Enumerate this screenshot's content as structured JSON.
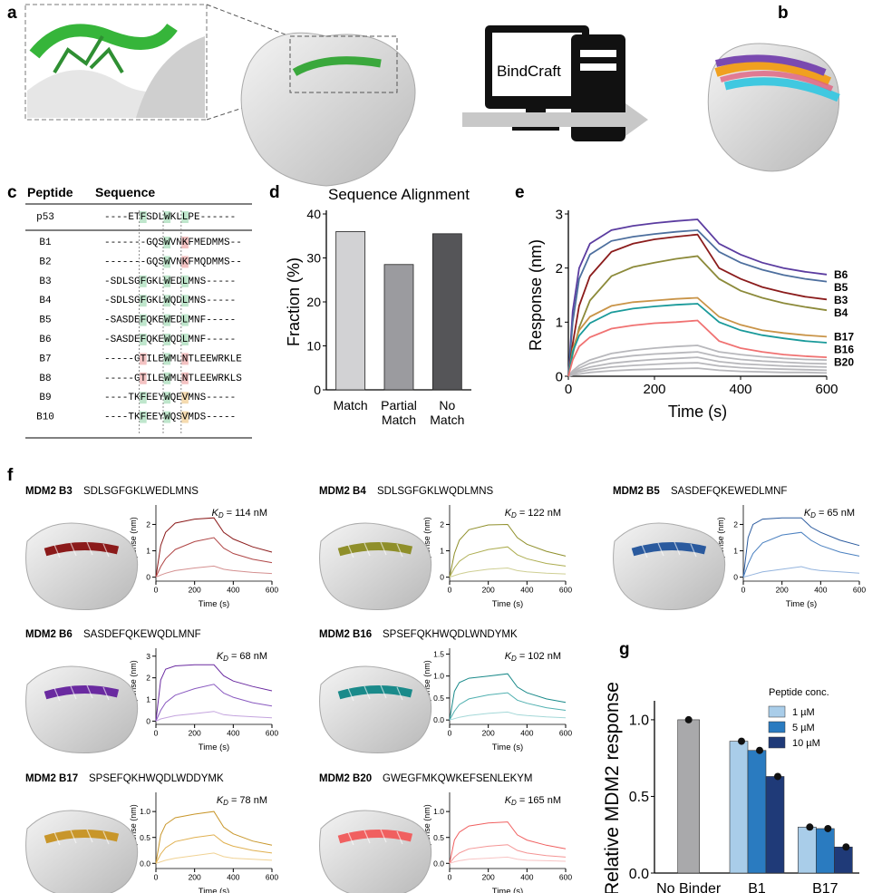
{
  "panel_labels": [
    "a",
    "b",
    "c",
    "d",
    "e",
    "f",
    "g"
  ],
  "software": "BindCraft",
  "alignment": {
    "headers": [
      "Peptide",
      "Sequence"
    ],
    "rows": [
      [
        "p53",
        "----ETFSDLWKLLPE------"
      ],
      [
        "B1",
        "-------GQSWVNKFMEDMMS--"
      ],
      [
        "B2",
        "-------GQSWVNKFMQDMMS--"
      ],
      [
        "B3",
        "-SDLSGFGKLWEDLMNS-----"
      ],
      [
        "B4",
        "-SDLSGFGKLWQDLMNS-----"
      ],
      [
        "B5",
        "-SASDEFQKEWEDLMNF-----"
      ],
      [
        "B6",
        "-SASDEFQKEWQDLMNF-----"
      ],
      [
        "B7",
        "-----GTILEWMLNTLEEWRKLE"
      ],
      [
        "B8",
        "-----GTILEWMLNTLEEWRKLS"
      ],
      [
        "B9",
        "----TKFEEYWQEVMNS-----"
      ],
      [
        "B10",
        "----TKFEEYWQSVMDS-----"
      ]
    ]
  },
  "chart_data": [
    {
      "type": "bar",
      "title": "Sequence Alignment",
      "categories": [
        "Match",
        "Partial\nMatch",
        "No\nMatch"
      ],
      "values": [
        36,
        28.5,
        35.5
      ],
      "colors": [
        "#d2d2d4",
        "#9b9b9f",
        "#555558"
      ],
      "ylabel": "Fraction (%)",
      "ylim": [
        0,
        40
      ],
      "yticks": [
        0,
        10,
        20,
        30,
        40
      ]
    },
    {
      "type": "line",
      "xlabel": "Time (s)",
      "ylabel": "Response (nm)",
      "x": [
        0,
        10,
        25,
        50,
        100,
        150,
        200,
        250,
        300,
        350,
        400,
        450,
        500,
        550,
        600
      ],
      "xlim": [
        0,
        600
      ],
      "xticks": [
        0,
        200,
        400,
        600
      ],
      "ylim": [
        0,
        3
      ],
      "yticks": [
        0,
        1,
        2,
        3
      ],
      "series": [
        {
          "color": "#b8b8bc",
          "values": [
            0,
            0.1,
            0.2,
            0.3,
            0.42,
            0.48,
            0.52,
            0.55,
            0.57,
            0.45,
            0.4,
            0.36,
            0.33,
            0.31,
            0.3
          ]
        },
        {
          "color": "#b8b8bc",
          "values": [
            0,
            0.08,
            0.15,
            0.24,
            0.33,
            0.38,
            0.41,
            0.43,
            0.45,
            0.36,
            0.31,
            0.28,
            0.26,
            0.24,
            0.23
          ]
        },
        {
          "color": "#b8b8bc",
          "values": [
            0,
            0.06,
            0.11,
            0.17,
            0.24,
            0.28,
            0.31,
            0.33,
            0.35,
            0.27,
            0.23,
            0.21,
            0.19,
            0.18,
            0.17
          ]
        },
        {
          "color": "#b8b8bc",
          "values": [
            0,
            0.04,
            0.08,
            0.12,
            0.17,
            0.2,
            0.22,
            0.24,
            0.25,
            0.19,
            0.16,
            0.14,
            0.13,
            0.12,
            0.11
          ]
        },
        {
          "color": "#b8b8bc",
          "values": [
            0,
            0.02,
            0.04,
            0.07,
            0.1,
            0.12,
            0.13,
            0.14,
            0.15,
            0.11,
            0.09,
            0.08,
            0.07,
            0.07,
            0.06
          ]
        },
        {
          "name": "B6",
          "color": "#5b3ca0",
          "values": [
            0,
            1.2,
            2.0,
            2.45,
            2.7,
            2.78,
            2.83,
            2.87,
            2.9,
            2.45,
            2.25,
            2.1,
            2.0,
            1.93,
            1.88
          ]
        },
        {
          "name": "B5",
          "color": "#4d6f9e",
          "values": [
            0,
            1.0,
            1.8,
            2.25,
            2.5,
            2.58,
            2.63,
            2.67,
            2.7,
            2.3,
            2.1,
            1.97,
            1.87,
            1.8,
            1.75
          ]
        },
        {
          "name": "B3",
          "color": "#8b1c1c",
          "values": [
            0,
            0.6,
            1.3,
            1.85,
            2.3,
            2.45,
            2.53,
            2.58,
            2.62,
            2.0,
            1.8,
            1.65,
            1.55,
            1.47,
            1.42
          ]
        },
        {
          "name": "B4",
          "color": "#8c8a3a",
          "values": [
            0,
            0.4,
            0.9,
            1.4,
            1.85,
            2.02,
            2.1,
            2.17,
            2.22,
            1.8,
            1.58,
            1.45,
            1.35,
            1.28,
            1.22
          ]
        },
        {
          "name": "B17",
          "color": "#c99448",
          "values": [
            0,
            0.5,
            0.85,
            1.1,
            1.3,
            1.37,
            1.4,
            1.43,
            1.45,
            1.1,
            0.95,
            0.85,
            0.8,
            0.76,
            0.73
          ]
        },
        {
          "name": "B16",
          "color": "#1a9a9a",
          "values": [
            0,
            0.45,
            0.75,
            0.98,
            1.18,
            1.25,
            1.29,
            1.32,
            1.34,
            1.0,
            0.85,
            0.76,
            0.7,
            0.65,
            0.62
          ]
        },
        {
          "name": "B20",
          "color": "#f07272",
          "values": [
            0,
            0.3,
            0.55,
            0.72,
            0.88,
            0.94,
            0.98,
            1.0,
            1.03,
            0.65,
            0.52,
            0.45,
            0.4,
            0.37,
            0.35
          ]
        }
      ]
    },
    {
      "type": "line",
      "title": "MDM2 B3",
      "subtitle": "SDLSGFGKLWEDLMNS",
      "annotation": {
        "symbol": "K",
        "subscript": "D",
        "text": "= 114 nM"
      },
      "xlabel": "Time (s)",
      "ylabel": "Response (nm)",
      "x": [
        0,
        25,
        50,
        100,
        200,
        300,
        350,
        400,
        500,
        600
      ],
      "xlim": [
        0,
        600
      ],
      "xticks": [
        0,
        200,
        400,
        600
      ],
      "ylim": [
        -0.15,
        2.6
      ],
      "yticks": [
        0,
        1,
        2
      ],
      "series": [
        {
          "color": "#8b1a1a",
          "values": [
            0,
            1.2,
            1.7,
            2.05,
            2.2,
            2.25,
            1.7,
            1.45,
            1.15,
            0.95
          ]
        },
        {
          "color": "#b04646",
          "values": [
            0,
            0.4,
            0.7,
            1.05,
            1.35,
            1.5,
            1.1,
            0.9,
            0.68,
            0.55
          ]
        },
        {
          "color": "#d49090",
          "values": [
            0,
            0.08,
            0.15,
            0.25,
            0.35,
            0.42,
            0.3,
            0.25,
            0.18,
            0.14
          ]
        }
      ]
    },
    {
      "type": "line",
      "title": "MDM2 B4",
      "subtitle": "SDLSGFGKLWQDLMNS",
      "annotation": {
        "symbol": "K",
        "subscript": "D",
        "text": "= 122 nM"
      },
      "xlabel": "Time (s)",
      "ylabel": "Response (nm)",
      "x": [
        0,
        25,
        50,
        100,
        200,
        300,
        350,
        400,
        500,
        600
      ],
      "xlim": [
        0,
        600
      ],
      "xticks": [
        0,
        200,
        400,
        600
      ],
      "ylim": [
        -0.15,
        2.6
      ],
      "yticks": [
        0,
        1,
        2
      ],
      "series": [
        {
          "color": "#8f8f2a",
          "values": [
            0,
            0.9,
            1.4,
            1.8,
            1.98,
            2.0,
            1.5,
            1.25,
            0.98,
            0.8
          ]
        },
        {
          "color": "#adad50",
          "values": [
            0,
            0.35,
            0.6,
            0.85,
            1.05,
            1.15,
            0.85,
            0.7,
            0.52,
            0.42
          ]
        },
        {
          "color": "#cfcf94",
          "values": [
            0,
            0.06,
            0.12,
            0.2,
            0.3,
            0.35,
            0.25,
            0.2,
            0.15,
            0.12
          ]
        }
      ]
    },
    {
      "type": "line",
      "title": "MDM2 B5",
      "subtitle": "SASDEFQKEWEDLMNF",
      "annotation": {
        "symbol": "K",
        "subscript": "D",
        "text": "= 65 nM"
      },
      "xlabel": "Time (s)",
      "ylabel": "Response (nm)",
      "x": [
        0,
        25,
        50,
        100,
        200,
        300,
        350,
        400,
        500,
        600
      ],
      "xlim": [
        0,
        600
      ],
      "xticks": [
        0,
        200,
        400,
        600
      ],
      "ylim": [
        -0.15,
        2.6
      ],
      "yticks": [
        0,
        1,
        2
      ],
      "series": [
        {
          "color": "#2a5a9e",
          "values": [
            0,
            1.5,
            2.0,
            2.2,
            2.25,
            2.25,
            1.9,
            1.7,
            1.4,
            1.2
          ]
        },
        {
          "color": "#4a80c0",
          "values": [
            0,
            0.5,
            0.9,
            1.3,
            1.6,
            1.7,
            1.4,
            1.2,
            0.95,
            0.8
          ]
        },
        {
          "color": "#94b4de",
          "values": [
            0,
            0.05,
            0.1,
            0.2,
            0.3,
            0.4,
            0.3,
            0.25,
            0.2,
            0.15
          ]
        }
      ]
    },
    {
      "type": "line",
      "title": "MDM2 B6",
      "subtitle": "SASDEFQKEWQDLMNF",
      "annotation": {
        "symbol": "K",
        "subscript": "D",
        "text": "= 68 nM"
      },
      "xlabel": "Time (s)",
      "ylabel": "Response (nm)",
      "x": [
        0,
        25,
        50,
        100,
        200,
        300,
        350,
        400,
        500,
        600
      ],
      "xlim": [
        0,
        600
      ],
      "xticks": [
        0,
        200,
        400,
        600
      ],
      "ylim": [
        -0.15,
        3.2
      ],
      "yticks": [
        0,
        1,
        2,
        3
      ],
      "series": [
        {
          "color": "#6a2aa0",
          "values": [
            0,
            1.9,
            2.4,
            2.55,
            2.6,
            2.6,
            2.1,
            1.85,
            1.6,
            1.4
          ]
        },
        {
          "color": "#8a5ac0",
          "values": [
            0,
            0.5,
            0.85,
            1.2,
            1.5,
            1.7,
            1.3,
            1.1,
            0.85,
            0.7
          ]
        },
        {
          "color": "#c4a4de",
          "values": [
            0,
            0.1,
            0.15,
            0.25,
            0.35,
            0.45,
            0.3,
            0.25,
            0.2,
            0.15
          ]
        }
      ]
    },
    {
      "type": "line",
      "title": "MDM2 B16",
      "subtitle": "SPSEFQKHWQDLWNDYMK",
      "annotation": {
        "symbol": "K",
        "subscript": "D",
        "text": "= 102 nM"
      },
      "xlabel": "Time (s)",
      "ylabel": "Response (nm)",
      "x": [
        0,
        25,
        50,
        100,
        200,
        300,
        350,
        400,
        500,
        600
      ],
      "xlim": [
        0,
        600
      ],
      "xticks": [
        0,
        200,
        400,
        600
      ],
      "ylim": [
        -0.1,
        1.55
      ],
      "yticks": [
        {
          "value": 0,
          "label": "0.0"
        },
        {
          "value": 0.5,
          "label": "0.5"
        },
        {
          "value": 1,
          "label": "1.0"
        },
        {
          "value": 1.5,
          "label": "1.5"
        }
      ],
      "series": [
        {
          "color": "#1a8a8a",
          "values": [
            0,
            0.65,
            0.85,
            0.95,
            1.0,
            1.05,
            0.75,
            0.62,
            0.48,
            0.4
          ]
        },
        {
          "color": "#50b0b0",
          "values": [
            0,
            0.2,
            0.35,
            0.48,
            0.57,
            0.62,
            0.45,
            0.38,
            0.28,
            0.22
          ]
        },
        {
          "color": "#a4d8d8",
          "values": [
            0,
            0.03,
            0.06,
            0.1,
            0.15,
            0.18,
            0.12,
            0.1,
            0.07,
            0.05
          ]
        }
      ]
    },
    {
      "type": "line",
      "title": "MDM2 B17",
      "subtitle": "SPSEFQKHWQDLWDDYMK",
      "annotation": {
        "symbol": "K",
        "subscript": "D",
        "text": "= 78 nM"
      },
      "xlabel": "Time (s)",
      "ylabel": "Response (nm)",
      "x": [
        0,
        25,
        50,
        100,
        200,
        300,
        350,
        400,
        500,
        600
      ],
      "xlim": [
        0,
        600
      ],
      "xticks": [
        0,
        200,
        400,
        600
      ],
      "ylim": [
        -0.1,
        1.3
      ],
      "yticks": [
        {
          "value": 0,
          "label": "0.0"
        },
        {
          "value": 0.5,
          "label": "0.5"
        },
        {
          "value": 1,
          "label": "1.0"
        }
      ],
      "series": [
        {
          "color": "#c8962a",
          "values": [
            0,
            0.55,
            0.75,
            0.88,
            0.95,
            1.0,
            0.7,
            0.57,
            0.43,
            0.35
          ]
        },
        {
          "color": "#e0b050",
          "values": [
            0,
            0.18,
            0.3,
            0.42,
            0.5,
            0.55,
            0.4,
            0.33,
            0.25,
            0.2
          ]
        },
        {
          "color": "#f0d294",
          "values": [
            0,
            0.03,
            0.06,
            0.1,
            0.15,
            0.2,
            0.13,
            0.1,
            0.08,
            0.06
          ]
        }
      ]
    },
    {
      "type": "line",
      "title": "MDM2 B20",
      "subtitle": "GWEGFMKQWKEFSENLEKYM",
      "annotation": {
        "symbol": "K",
        "subscript": "D",
        "text": "= 165 nM"
      },
      "xlabel": "Time (s)",
      "ylabel": "Response (nm)",
      "x": [
        0,
        25,
        50,
        100,
        200,
        300,
        350,
        400,
        500,
        600
      ],
      "xlim": [
        0,
        600
      ],
      "xticks": [
        0,
        200,
        400,
        600
      ],
      "ylim": [
        -0.1,
        1.3
      ],
      "yticks": [
        {
          "value": 0,
          "label": "0.0"
        },
        {
          "value": 0.5,
          "label": "0.5"
        },
        {
          "value": 1,
          "label": "1.0"
        }
      ],
      "series": [
        {
          "color": "#f06060",
          "values": [
            0,
            0.45,
            0.6,
            0.72,
            0.78,
            0.8,
            0.55,
            0.45,
            0.35,
            0.28
          ]
        },
        {
          "color": "#f49494",
          "values": [
            0,
            0.12,
            0.2,
            0.28,
            0.33,
            0.36,
            0.25,
            0.2,
            0.15,
            0.12
          ]
        },
        {
          "color": "#f8c4c4",
          "values": [
            0,
            0.03,
            0.05,
            0.08,
            0.1,
            0.12,
            0.08,
            0.06,
            0.05,
            0.04
          ]
        }
      ]
    },
    {
      "type": "bar",
      "ylabel": "Relative MDM2 response",
      "categories": [
        "No Binder",
        "B1",
        "B17"
      ],
      "control": {
        "value": 1.0,
        "color": "#a9a9ab"
      },
      "legend_title": "Peptide conc.",
      "legend": "upper right",
      "ylim": [
        0,
        1.1
      ],
      "yticks": [
        {
          "value": 0,
          "label": "0.0"
        },
        {
          "value": 0.5,
          "label": "0.5"
        },
        {
          "value": 1,
          "label": "1.0"
        }
      ],
      "series": [
        {
          "name": "1 µM",
          "color": "#a9cde9",
          "values": [
            null,
            0.86,
            0.3
          ]
        },
        {
          "name": "5 µM",
          "color": "#2a7bc0",
          "values": [
            null,
            0.8,
            0.29
          ]
        },
        {
          "name": "10 µM",
          "color": "#1f3a78",
          "values": [
            null,
            0.63,
            0.17
          ]
        }
      ]
    }
  ]
}
